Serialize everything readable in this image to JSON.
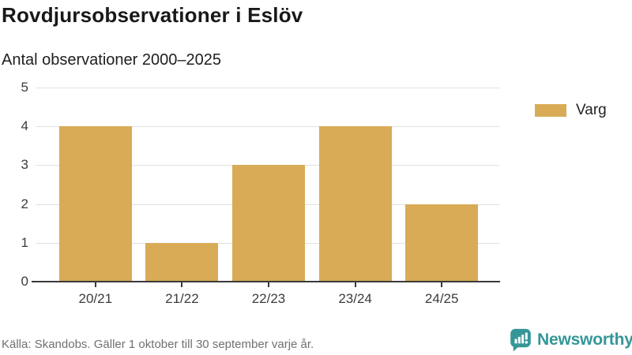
{
  "header": {
    "title": "Rovdjursobservationer i Eslöv",
    "subtitle": "Antal observationer 2000–2025"
  },
  "legend": {
    "items": [
      {
        "label": "Varg",
        "color": "#D9AB57"
      }
    ]
  },
  "chart_data": {
    "type": "bar",
    "categories": [
      "20/21",
      "21/22",
      "22/23",
      "23/24",
      "24/25"
    ],
    "series": [
      {
        "name": "Varg",
        "values": [
          4,
          1,
          3,
          4,
          2
        ],
        "color": "#D9AB57"
      }
    ],
    "title": "Rovdjursobservationer i Eslöv",
    "subtitle": "Antal observationer 2000–2025",
    "xlabel": "",
    "ylabel": "",
    "ylim": [
      0,
      5
    ],
    "yticks": [
      0,
      1,
      2,
      3,
      4,
      5
    ],
    "grid": true,
    "legend_position": "right"
  },
  "footer": {
    "source": "Källa: Skandobs. Gäller 1 oktober till 30 september varje år.",
    "brand": "Newsworthy"
  },
  "colors": {
    "bar": "#D9AB57",
    "axis": "#3A3A3A",
    "gridline": "#E1E1E1",
    "title_text": "#191919",
    "muted_text": "#707070",
    "brand_teal": "#359697"
  }
}
